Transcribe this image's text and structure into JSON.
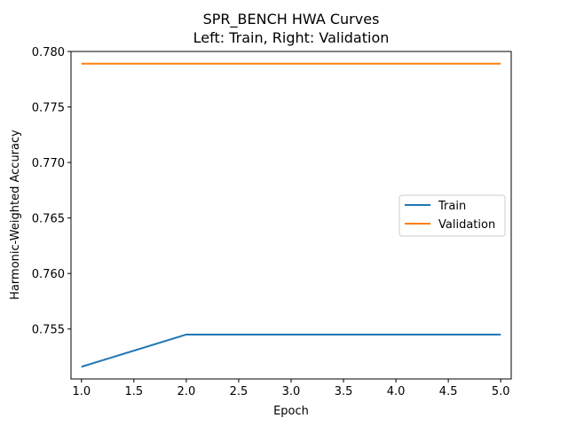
{
  "chart_data": {
    "type": "line",
    "title": "SPR_BENCH HWA Curves",
    "subtitle": "Left: Train, Right: Validation",
    "xlabel": "Epoch",
    "ylabel": "Harmonic-Weighted Accuracy",
    "x": [
      1,
      2,
      3,
      4,
      5
    ],
    "xlim": [
      0.9,
      5.1
    ],
    "ylim": [
      0.7505,
      0.78
    ],
    "xticks": [
      "1.0",
      "1.5",
      "2.0",
      "2.5",
      "3.0",
      "3.5",
      "4.0",
      "4.5",
      "5.0"
    ],
    "yticks": [
      "0.755",
      "0.760",
      "0.765",
      "0.770",
      "0.775",
      "0.780"
    ],
    "grid": false,
    "legend_position": "center-right",
    "series": [
      {
        "name": "Train",
        "color": "#1f77b4",
        "values": [
          0.7516,
          0.7545,
          0.7545,
          0.7545,
          0.7545
        ]
      },
      {
        "name": "Validation",
        "color": "#ff7f0e",
        "values": [
          0.7789,
          0.7789,
          0.7789,
          0.7789,
          0.7789
        ]
      }
    ]
  }
}
